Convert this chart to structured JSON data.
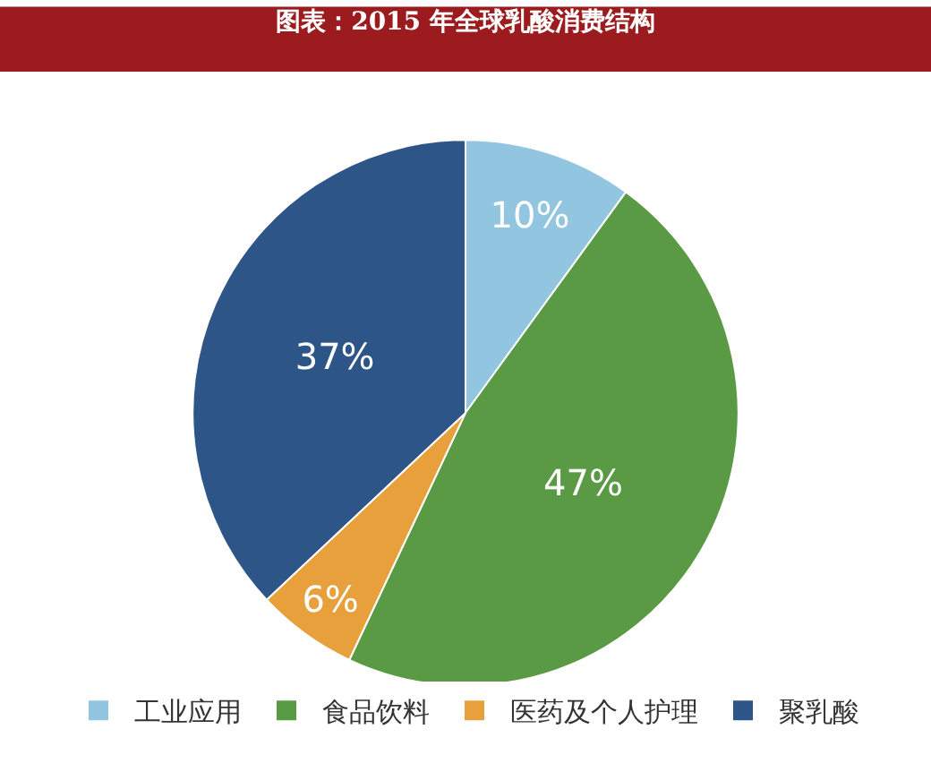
{
  "chart_data": {
    "type": "pie",
    "title": "图表：2015 年全球乳酸消费结构",
    "categories": [
      "工业应用",
      "食品饮料",
      "医药及个人护理",
      "聚乳酸"
    ],
    "values": [
      10,
      47,
      6,
      37
    ],
    "colors": [
      "#92c5e0",
      "#5b9a45",
      "#e8a03c",
      "#2e5587"
    ],
    "value_labels": [
      "10%",
      "47%",
      "6%",
      "37%"
    ],
    "legend": "bottom"
  }
}
